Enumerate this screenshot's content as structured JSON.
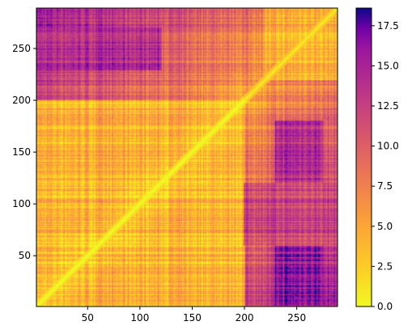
{
  "chart_data": {
    "type": "heatmap",
    "title": "",
    "xlabel": "",
    "ylabel": "",
    "colormap": "plasma_r",
    "n": 289,
    "xlim": [
      1,
      289
    ],
    "ylim": [
      1,
      289
    ],
    "x_ticks": [
      50,
      100,
      150,
      200,
      250
    ],
    "y_ticks": [
      50,
      100,
      150,
      200,
      250
    ],
    "color_range": [
      0,
      18.6
    ],
    "colorbar_ticks": [
      "0.0",
      "2.5",
      "5.0",
      "7.5",
      "10.0",
      "12.5",
      "15.0",
      "17.5"
    ],
    "colorbar_tick_values": [
      0,
      2.5,
      5,
      7.5,
      10,
      12.5,
      15,
      17.5
    ],
    "diagonal_value": 0,
    "grid": false,
    "legend": "colorbar-right",
    "region_values": [
      {
        "x": [
          1,
          200
        ],
        "y": [
          1,
          200
        ],
        "level": 4
      },
      {
        "x": [
          220,
          289
        ],
        "y": [
          220,
          289
        ],
        "level": 4
      },
      {
        "x": [
          1,
          120
        ],
        "y": [
          230,
          270
        ],
        "level": 14
      },
      {
        "x": [
          230,
          275
        ],
        "y": [
          1,
          60
        ],
        "level": 16
      },
      {
        "x": [
          230,
          275
        ],
        "y": [
          120,
          180
        ],
        "level": 14
      },
      {
        "x": [
          200,
          289
        ],
        "y": [
          60,
          120
        ],
        "level": 12
      }
    ]
  }
}
